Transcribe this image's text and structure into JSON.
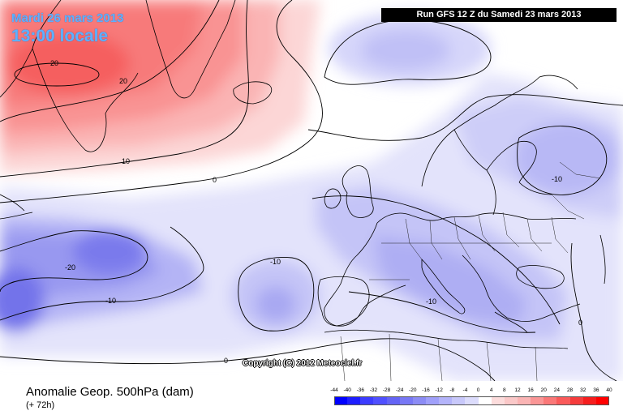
{
  "header": {
    "date_line": "Mardi 26 mars 2013",
    "time_line": "13:00 locale",
    "run_info": "Run GFS 12 Z du Samedi 23 mars 2013"
  },
  "map": {
    "copyright": "Copyright (C) 2012 Meteociel.fr",
    "contour_labels": [
      "20",
      "20",
      "10",
      "0",
      "-10",
      "-20",
      "-10",
      "-10",
      "-10",
      "0",
      "0"
    ]
  },
  "footer": {
    "title": "Anomalie Geop. 500hPa (dam)",
    "subtitle": "(+ 72h)"
  },
  "legend": {
    "ticks": [
      "-44",
      "-40",
      "-36",
      "-32",
      "-28",
      "-24",
      "-20",
      "-16",
      "-12",
      "-8",
      "-4",
      "0",
      "4",
      "8",
      "12",
      "16",
      "20",
      "24",
      "28",
      "32",
      "36",
      "40"
    ],
    "colors": [
      "#0000ff",
      "#1e1eff",
      "#3c3cff",
      "#5050ff",
      "#6464f5",
      "#7878f5",
      "#8c8cf5",
      "#a0a0fa",
      "#b4b4fa",
      "#c8c8fa",
      "#dcdcfc",
      "#ffffff",
      "#fcdcdc",
      "#fac8c8",
      "#fab4b4",
      "#fa9696",
      "#fa7878",
      "#fa5a5a",
      "#f53c3c",
      "#f51e1e",
      "#ff0000"
    ]
  }
}
